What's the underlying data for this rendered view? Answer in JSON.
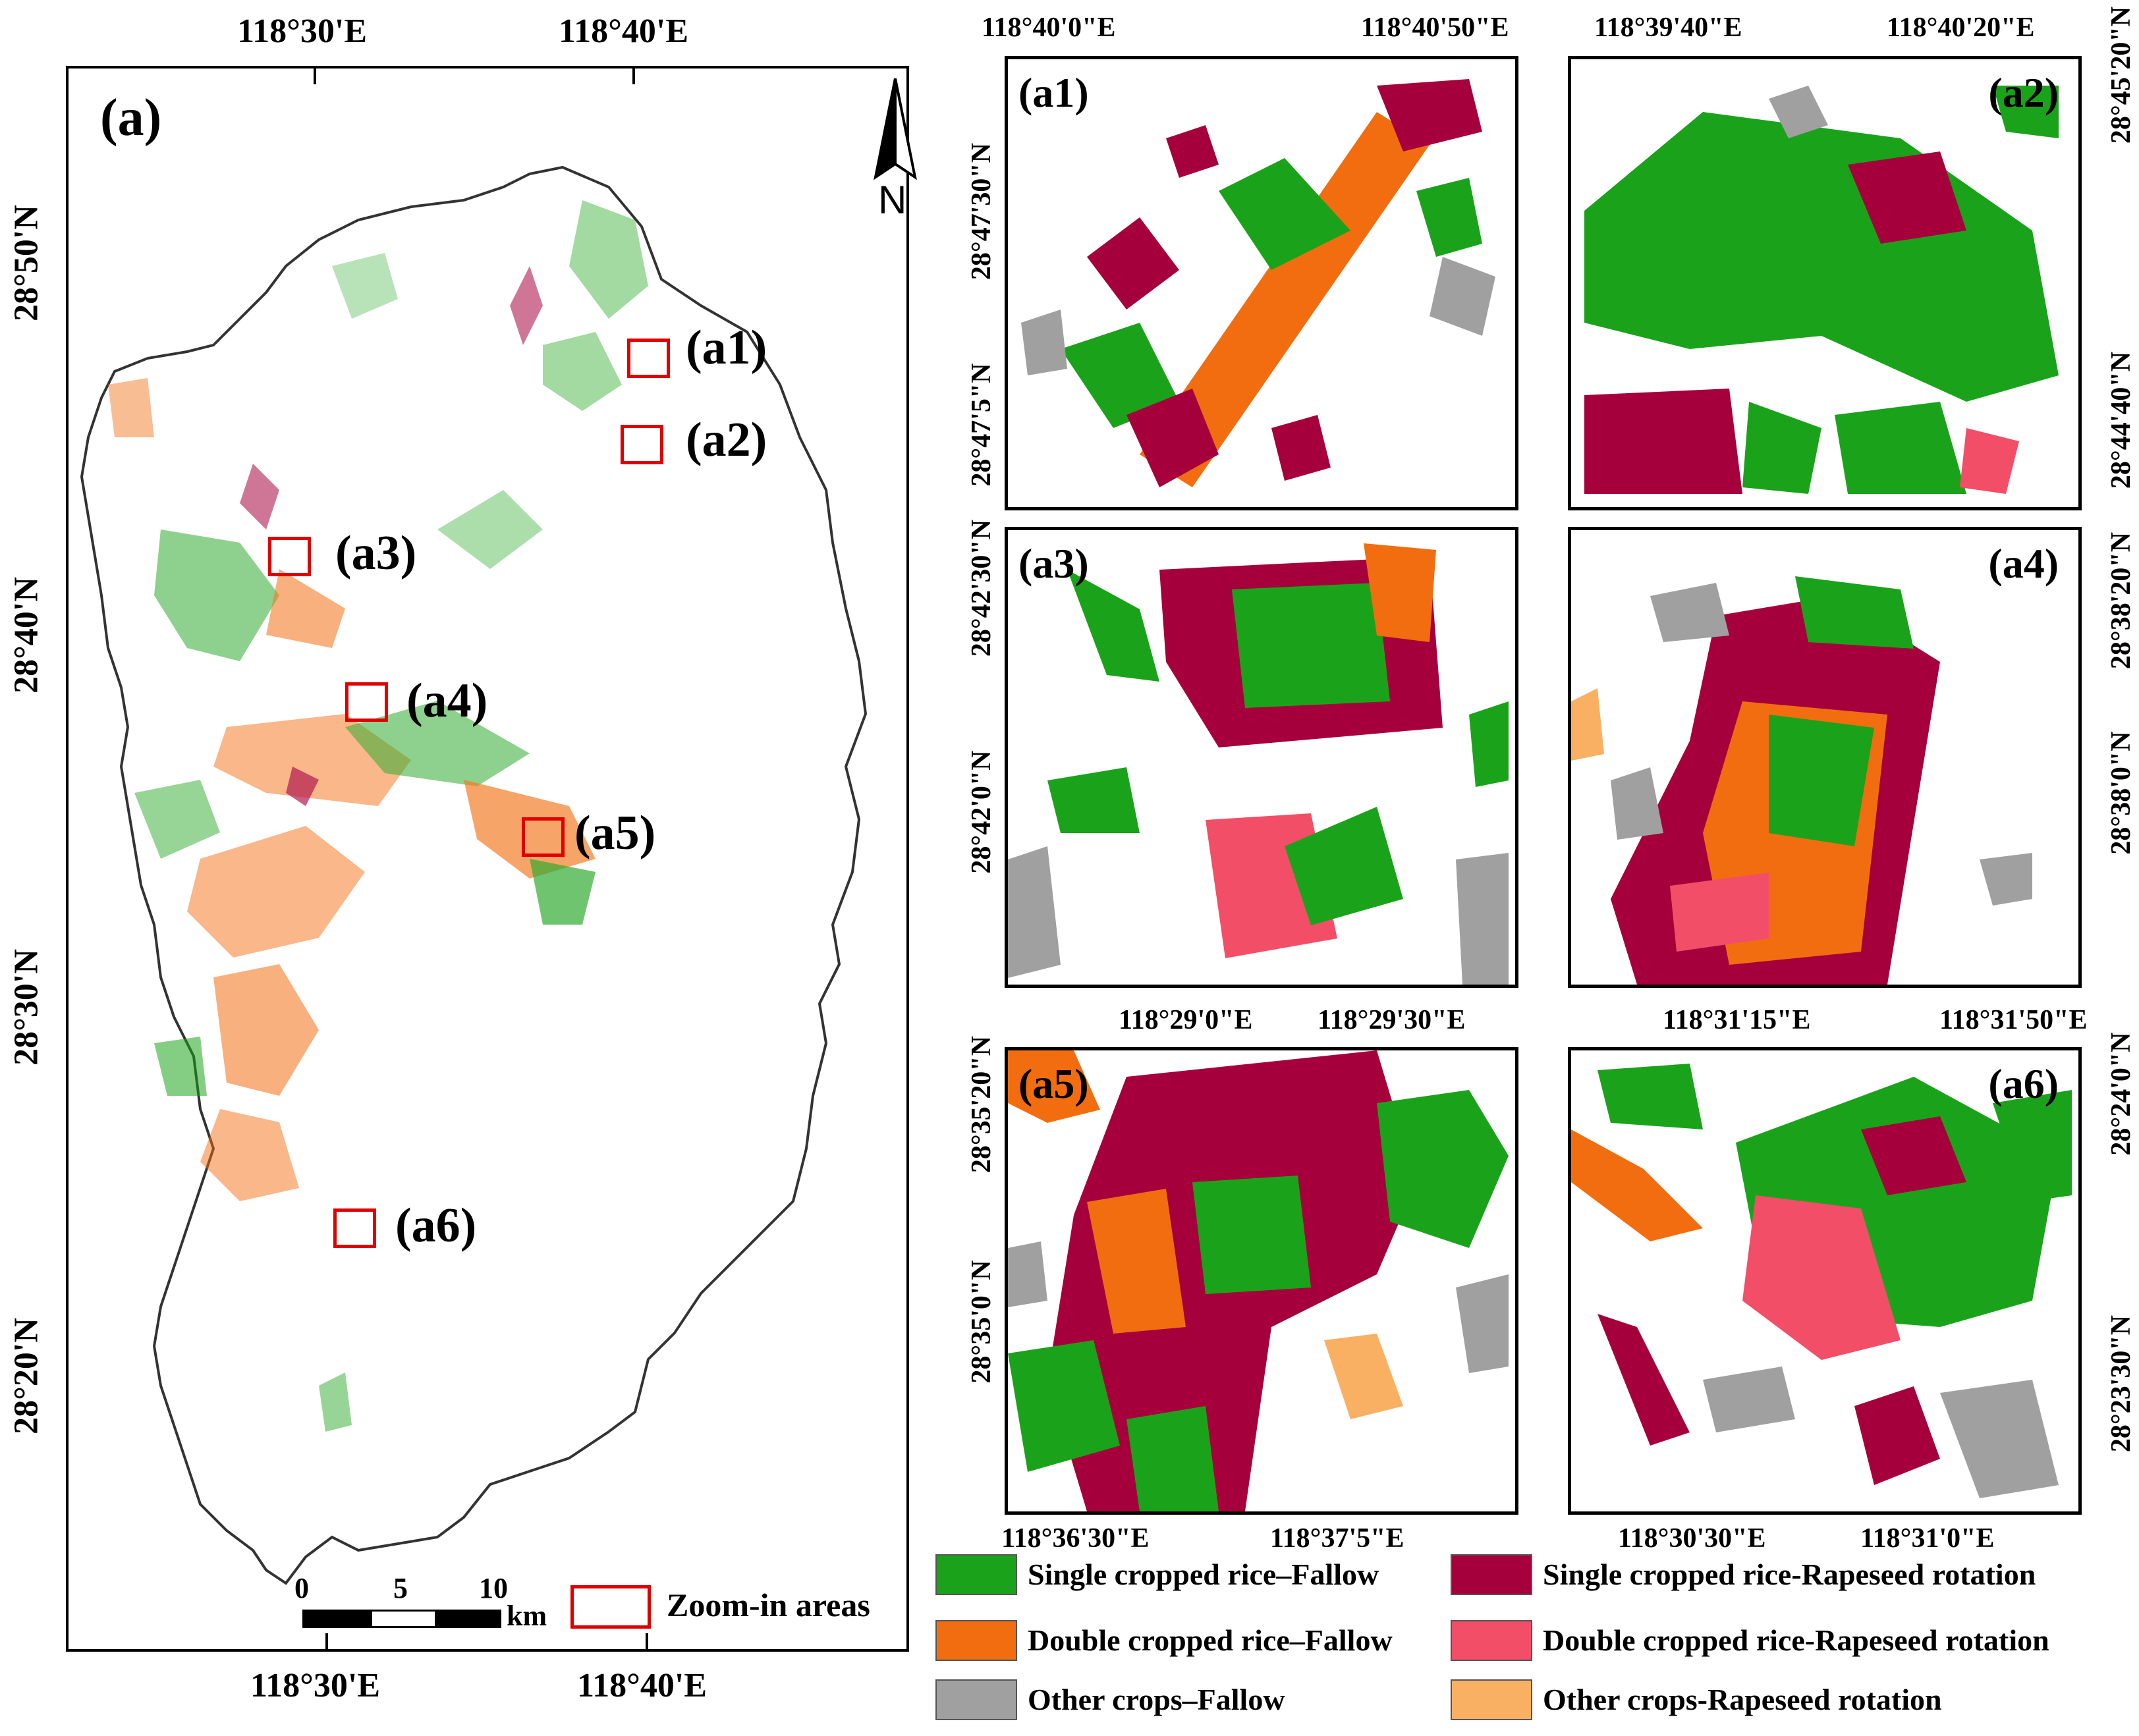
{
  "colors": {
    "single_fallow": "#1aa31a",
    "double_fallow": "#f26d10",
    "other_fallow": "#a0a0a0",
    "single_rapeseed": "#a6003c",
    "double_rapeseed": "#f24e68",
    "other_rapeseed": "#fab062",
    "zoom_box": "#e00000"
  },
  "main_map": {
    "label": "(a)",
    "top_lon": [
      "118°30'E",
      "118°40'E"
    ],
    "bottom_lon": [
      "118°30'E",
      "118°40'E"
    ],
    "left_lat": [
      "28°50'N",
      "28°40'N",
      "28°30'N",
      "28°20'N"
    ],
    "north_arrow": "N",
    "scale_ticks": [
      "0",
      "5",
      "10"
    ],
    "scale_unit": "km",
    "zoom_legend": "Zoom-in areas",
    "zoom_labels": [
      "(a1)",
      "(a2)",
      "(a3)",
      "(a4)",
      "(a5)",
      "(a6)"
    ]
  },
  "panels": {
    "a1": {
      "tag": "(a1)",
      "top": [
        "118°40'0\"E",
        "118°40'50\"E"
      ],
      "left": [
        "28°47'30\"N",
        "28°47'5\"N"
      ]
    },
    "a2": {
      "tag": "(a2)",
      "top": [
        "118°39'40\"E",
        "118°40'20\"E"
      ],
      "right": [
        "28°45'20\"N",
        "28°44'40\"N"
      ]
    },
    "a3": {
      "tag": "(a3)",
      "bottom": [
        "118°29'0\"E",
        "118°29'30\"E"
      ],
      "left": [
        "28°42'30\"N",
        "28°42'0\"N"
      ]
    },
    "a4": {
      "tag": "(a4)",
      "bottom": [
        "118°31'15\"E",
        "118°31'50\"E"
      ],
      "right": [
        "28°38'20\"N",
        "28°38'0\"N"
      ]
    },
    "a5": {
      "tag": "(a5)",
      "bottom": [
        "118°36'30\"E",
        "118°37'5\"E"
      ],
      "left": [
        "28°35'20\"N",
        "28°35'0\"N"
      ]
    },
    "a6": {
      "tag": "(a6)",
      "bottom": [
        "118°30'30\"E",
        "118°31'0\"E"
      ],
      "right": [
        "28°24'0\"N",
        "28°23'30\"N"
      ]
    }
  },
  "legend": [
    {
      "label": "Single cropped rice–Fallow",
      "color": "#1aa31a"
    },
    {
      "label": "Single cropped rice-Rapeseed rotation",
      "color": "#a6003c"
    },
    {
      "label": "Double cropped rice–Fallow",
      "color": "#f26d10"
    },
    {
      "label": "Double cropped rice-Rapeseed rotation",
      "color": "#f24e68"
    },
    {
      "label": "Other crops–Fallow",
      "color": "#a0a0a0"
    },
    {
      "label": "Other crops-Rapeseed rotation",
      "color": "#fab062"
    }
  ]
}
